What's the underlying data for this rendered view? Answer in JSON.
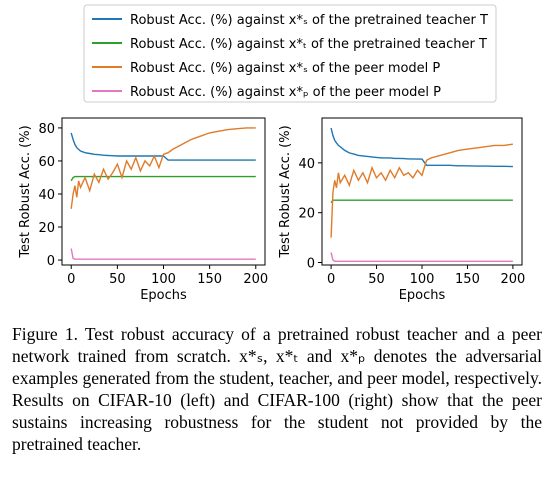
{
  "chart_data": [
    {
      "type": "line",
      "xlabel": "Epochs",
      "ylabel": "Test Robust Acc. (%)",
      "xlim": [
        -10,
        210
      ],
      "ylim": [
        -3,
        86
      ],
      "xticks": [
        0,
        50,
        100,
        150,
        200
      ],
      "yticks": [
        0,
        20,
        40,
        60,
        80
      ],
      "x": [
        0,
        2,
        4,
        6,
        8,
        10,
        15,
        20,
        25,
        30,
        35,
        40,
        45,
        50,
        55,
        60,
        65,
        70,
        75,
        80,
        85,
        90,
        95,
        100,
        105,
        110,
        120,
        130,
        140,
        150,
        160,
        170,
        180,
        190,
        200
      ],
      "series": [
        {
          "name": "Robust Acc. (%) against x*ₛ of the pretrained teacher T",
          "color": "#1f77b4",
          "values": [
            77,
            73,
            70,
            68,
            67,
            66,
            65,
            64.5,
            64,
            63.8,
            63.5,
            63.3,
            63.2,
            63,
            63,
            63,
            63,
            63,
            63,
            63,
            63,
            63,
            63,
            63,
            60.5,
            60.5,
            60.5,
            60.5,
            60.5,
            60.5,
            60.5,
            60.5,
            60.5,
            60.5,
            60.5
          ]
        },
        {
          "name": "Robust Acc. (%) against x*ₜ of the pretrained teacher T",
          "color": "#2ca02c",
          "values": [
            48,
            50,
            50.5,
            50.5,
            50.5,
            50.5,
            50.5,
            50.5,
            50.5,
            50.5,
            50.5,
            50.5,
            50.5,
            50.5,
            50.5,
            50.5,
            50.5,
            50.5,
            50.5,
            50.5,
            50.5,
            50.5,
            50.5,
            50.5,
            50.5,
            50.5,
            50.5,
            50.5,
            50.5,
            50.5,
            50.5,
            50.5,
            50.5,
            50.5,
            50.5
          ]
        },
        {
          "name": "Robust Acc. (%) against x*ₛ of the peer model P",
          "color": "#e07b28",
          "values": [
            31,
            40,
            45,
            38,
            48,
            44,
            50,
            42,
            52,
            47,
            55,
            49,
            53,
            58,
            50,
            60,
            55,
            62,
            54,
            60,
            57,
            63,
            56,
            64,
            65,
            67,
            70,
            73,
            75,
            77,
            78,
            79,
            79.5,
            80,
            80
          ]
        },
        {
          "name": "Robust Acc. (%) against x*ₚ of the peer model P",
          "color": "#e377c2",
          "values": [
            7,
            1,
            0.5,
            0.5,
            0.5,
            0.5,
            0.5,
            0.5,
            0.5,
            0.5,
            0.5,
            0.5,
            0.5,
            0.5,
            0.5,
            0.5,
            0.5,
            0.5,
            0.5,
            0.5,
            0.5,
            0.5,
            0.5,
            0.5,
            0.5,
            0.5,
            0.5,
            0.5,
            0.5,
            0.5,
            0.5,
            0.5,
            0.5,
            0.5,
            0.5
          ]
        }
      ]
    },
    {
      "type": "line",
      "xlabel": "Epochs",
      "ylabel": "Test Robust Acc. (%)",
      "xlim": [
        -10,
        210
      ],
      "ylim": [
        -1,
        58
      ],
      "xticks": [
        0,
        50,
        100,
        150,
        200
      ],
      "yticks": [
        0,
        20,
        40
      ],
      "x": [
        0,
        2,
        4,
        6,
        8,
        10,
        15,
        20,
        25,
        30,
        35,
        40,
        45,
        50,
        55,
        60,
        65,
        70,
        75,
        80,
        85,
        90,
        95,
        100,
        105,
        110,
        120,
        130,
        140,
        150,
        160,
        170,
        180,
        190,
        200
      ],
      "series": [
        {
          "color": "#1f77b4",
          "values": [
            54,
            51,
            49,
            48,
            47,
            46.5,
            45,
            44,
            43.5,
            43,
            42.8,
            42.6,
            42.4,
            42.2,
            42,
            42,
            42,
            41.8,
            41.8,
            41.7,
            41.6,
            41.6,
            41.5,
            41.5,
            39,
            39,
            39,
            39,
            38.8,
            38.8,
            38.7,
            38.7,
            38.6,
            38.6,
            38.5
          ]
        },
        {
          "color": "#2ca02c",
          "values": [
            24,
            25,
            25,
            25,
            25,
            25,
            25,
            25,
            25,
            25,
            25,
            25,
            25,
            25,
            25,
            25,
            25,
            25,
            25,
            25,
            25,
            25,
            25,
            25,
            25,
            25,
            25,
            25,
            25,
            25,
            25,
            25,
            25,
            25,
            25
          ]
        },
        {
          "color": "#e07b28",
          "values": [
            10,
            28,
            33,
            30,
            36,
            32,
            35,
            31,
            37,
            33,
            36,
            32,
            38,
            34,
            36,
            33,
            37,
            34,
            38,
            35,
            36,
            34,
            37,
            35,
            41,
            42,
            43,
            44,
            45,
            45.5,
            46,
            46.5,
            47,
            47,
            47.5
          ]
        },
        {
          "color": "#e377c2",
          "values": [
            4,
            1,
            0.5,
            0.5,
            0.5,
            0.5,
            0.5,
            0.5,
            0.5,
            0.5,
            0.5,
            0.5,
            0.5,
            0.5,
            0.5,
            0.5,
            0.5,
            0.5,
            0.5,
            0.5,
            0.5,
            0.5,
            0.5,
            0.5,
            0.5,
            0.5,
            0.5,
            0.5,
            0.5,
            0.5,
            0.5,
            0.5,
            0.5,
            0.5,
            0.5
          ]
        }
      ]
    }
  ],
  "caption": "Figure 1. Test robust accuracy of a pretrained robust teacher and a peer network trained from scratch. x*ₛ, x*ₜ and x*ₚ denotes the adversarial examples generated from the student, teacher, and peer model, respectively. Results on CIFAR-10 (left) and CIFAR-100 (right) show that the peer sustains increasing robustness for the student not provided by the pretrained teacher."
}
